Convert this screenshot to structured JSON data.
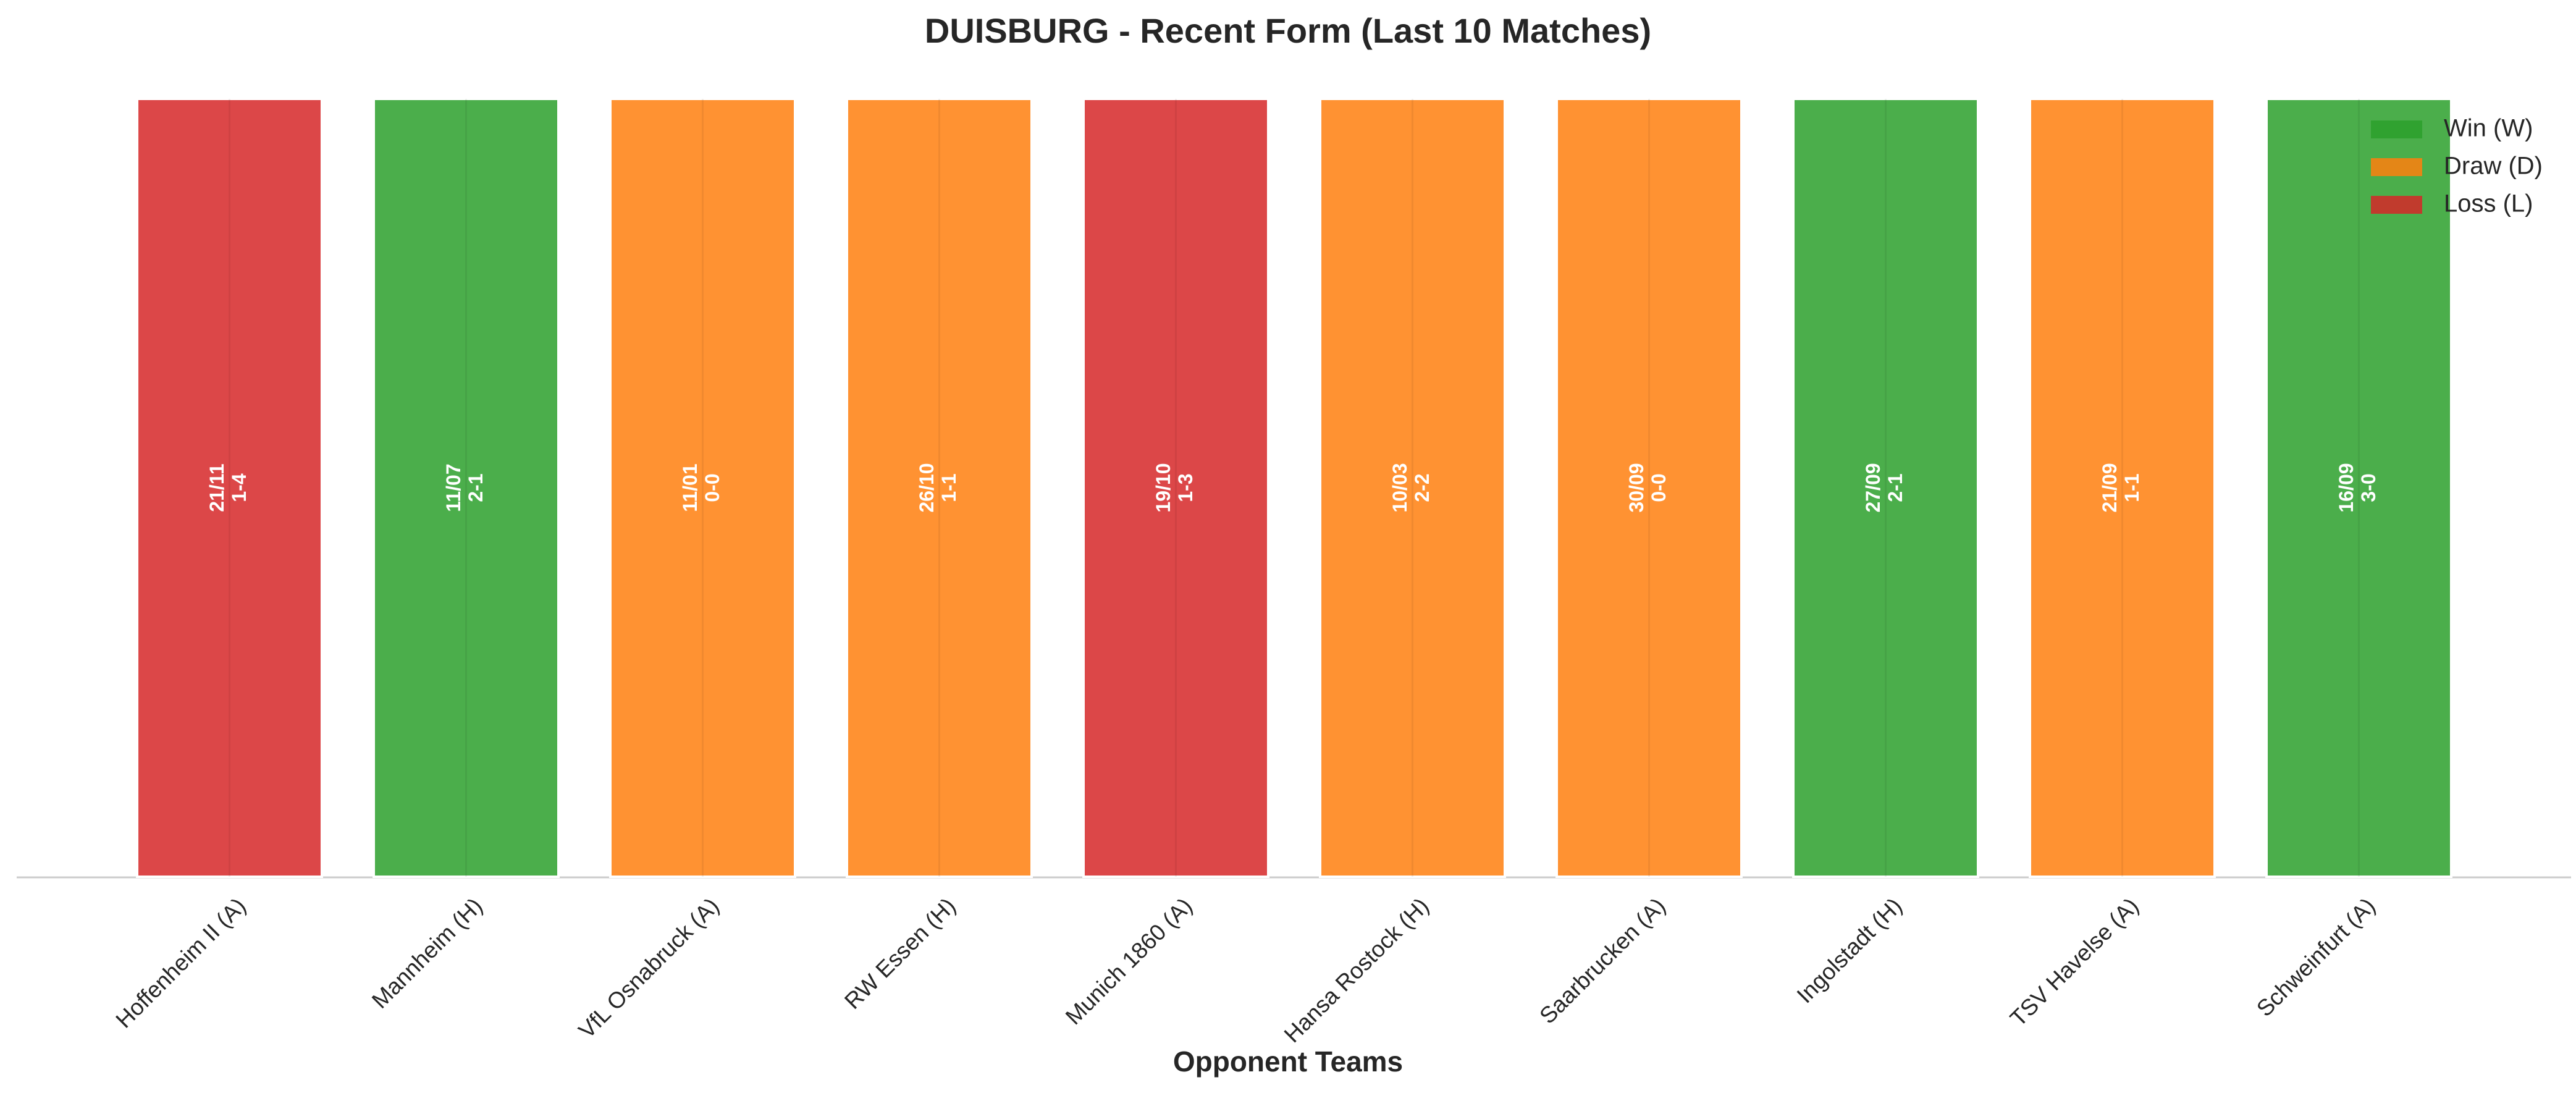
{
  "chart_data": {
    "type": "bar",
    "title": "DUISBURG - Recent Form (Last 10 Matches)",
    "x_label": "Opponent Teams",
    "categories": [
      "Hoffenheim II (A)",
      "Mannheim (H)",
      "VfL Osnabruck (A)",
      "RW Essen (H)",
      "Munich 1860 (A)",
      "Hansa Rostock (H)",
      "Saarbrucken (A)",
      "Ingolstadt (H)",
      "TSV Havelse (A)",
      "Schweinfurt (A)"
    ],
    "values": [
      1,
      1,
      1,
      1,
      1,
      1,
      1,
      1,
      1,
      1
    ],
    "ylim": [
      0,
      1
    ],
    "dates": [
      "21/11",
      "11/07",
      "11/01",
      "26/10",
      "19/10",
      "10/03",
      "30/09",
      "27/09",
      "21/09",
      "16/09"
    ],
    "scores": [
      "1-4",
      "2-1",
      "0-0",
      "1-1",
      "1-3",
      "2-2",
      "0-0",
      "2-1",
      "1-1",
      "3-0"
    ],
    "results": [
      "L",
      "W",
      "D",
      "D",
      "L",
      "D",
      "D",
      "W",
      "D",
      "W"
    ],
    "legend": [
      {
        "name": "Win (W)",
        "code": "W",
        "color": "#2ca02c"
      },
      {
        "name": "Draw (D)",
        "code": "D",
        "color": "#ff7f0e"
      },
      {
        "name": "Loss (L)",
        "code": "L",
        "color": "#d62728"
      }
    ],
    "legend_position": "upper right"
  }
}
